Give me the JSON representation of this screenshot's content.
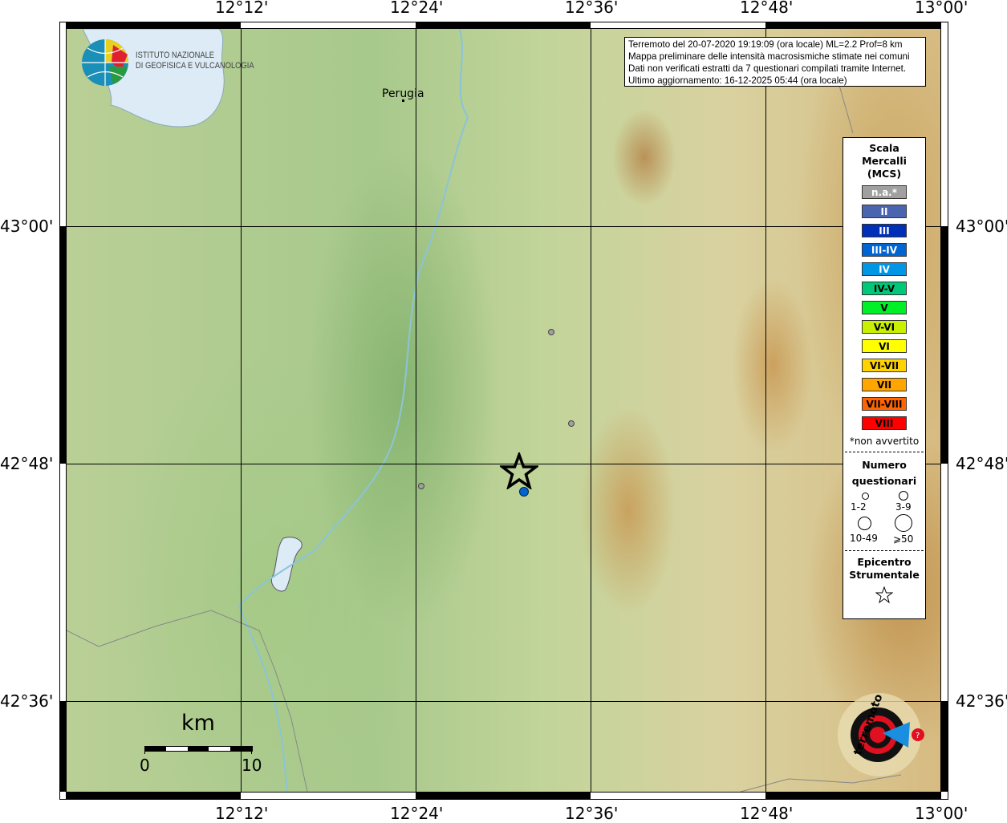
{
  "axes": {
    "top_ticks": [
      "12°12'",
      "12°24'",
      "12°36'",
      "12°48'",
      "13°00'"
    ],
    "bottom_ticks": [
      "12°12'",
      "12°24'",
      "12°36'",
      "12°48'",
      "13°00'"
    ],
    "left_ticks": [
      "43°00'",
      "42°48'",
      "42°36'"
    ],
    "right_ticks": [
      "43°00'",
      "42°48'",
      "42°36'"
    ]
  },
  "info": {
    "lines": [
      "Terremoto del 20-07-2020 19:19:09 (ora locale) ML=2.2 Prof=8 km",
      "Mappa preliminare delle intensità macrosismiche stimate nei comuni",
      "Dati non verificati estratti da 7 questionari compilati tramite Internet.",
      "Ultimo aggiornamento: 16-12-2025 05:44 (ora locale)"
    ]
  },
  "places": {
    "perugia": "Perugia"
  },
  "ingv_logo": {
    "line1": "ISTITUTO NAZIONALE",
    "line2": "DI GEOFISICA E VULCANOLOGIA"
  },
  "hst_logo": "www.haisentitoilterremoto.it",
  "scale": {
    "unit": "km",
    "min": "0",
    "max": "10"
  },
  "legend": {
    "title": [
      "Scala",
      "Mercalli",
      "(MCS)"
    ],
    "classes": [
      {
        "label": "n.a.*",
        "color": "#a0a0a0",
        "text": "#fff"
      },
      {
        "label": "II",
        "color": "#4a64b0",
        "text": "#fff"
      },
      {
        "label": "III",
        "color": "#0030b8",
        "text": "#fff"
      },
      {
        "label": "III-IV",
        "color": "#0064d2",
        "text": "#fff"
      },
      {
        "label": "IV",
        "color": "#0096e6",
        "text": "#fff"
      },
      {
        "label": "IV-V",
        "color": "#00c878",
        "text": "#000"
      },
      {
        "label": "V",
        "color": "#00f028",
        "text": "#000"
      },
      {
        "label": "V-VI",
        "color": "#c8f000",
        "text": "#000"
      },
      {
        "label": "VI",
        "color": "#ffff00",
        "text": "#000"
      },
      {
        "label": "VI-VII",
        "color": "#ffd200",
        "text": "#000"
      },
      {
        "label": "VII",
        "color": "#ffa500",
        "text": "#000"
      },
      {
        "label": "VII-VIII",
        "color": "#ff6400",
        "text": "#000"
      },
      {
        "label": "VIII",
        "color": "#ff0000",
        "text": "#000"
      }
    ],
    "note": "*non avvertito",
    "count_title": [
      "Numero",
      "questionari"
    ],
    "counts": [
      "1-2",
      "3-9",
      "10-49",
      "⩾50"
    ],
    "epi_title": [
      "Epicentro",
      "Strumentale"
    ]
  },
  "points": [
    {
      "type": "n.a.",
      "color": "#a0a0a0"
    },
    {
      "type": "n.a.",
      "color": "#a0a0a0"
    },
    {
      "type": "n.a.",
      "color": "#a0a0a0"
    },
    {
      "type": "III-IV",
      "color": "#0064d2"
    }
  ]
}
